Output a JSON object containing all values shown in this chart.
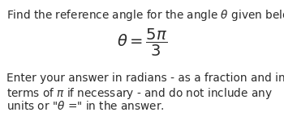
{
  "line1": "Find the reference angle for the angle $\\theta$ given below.",
  "equation": "$\\theta = \\dfrac{5\\pi}{3}$",
  "footer_line1": "Enter your answer in radians - as a fraction and in",
  "footer_line2": "terms of $\\pi$ if necessary - and do not include any",
  "footer_line3": "units or \"$\\theta$' ='\" in the answer.",
  "background_color": "#ffffff",
  "text_color": "#2b2b2b",
  "font_size_body": 9.8,
  "font_size_eq": 14.0
}
